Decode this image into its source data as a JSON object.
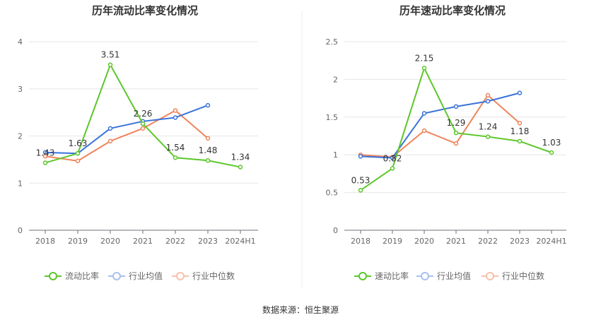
{
  "source_text": "数据来源：恒生聚源",
  "chart_data": [
    {
      "type": "line",
      "title": "历年流动比率变化情况",
      "categories": [
        "2018",
        "2019",
        "2020",
        "2021",
        "2022",
        "2023",
        "2024H1"
      ],
      "ylim": [
        0,
        4
      ],
      "yticks": [
        "0",
        "1",
        "2",
        "3",
        "4"
      ],
      "grid": true,
      "legend_position": "bottom",
      "series": [
        {
          "name": "流动比率",
          "color": "#5cc72a",
          "values": [
            1.43,
            1.63,
            3.51,
            2.26,
            1.54,
            1.48,
            1.34
          ],
          "labels": [
            "1.43",
            "1.63",
            "3.51",
            "2.26",
            "1.54",
            "1.48",
            "1.34"
          ]
        },
        {
          "name": "行业均值",
          "color": "#3a73d9",
          "values": [
            1.65,
            1.63,
            2.16,
            2.31,
            2.39,
            2.65,
            null
          ]
        },
        {
          "name": "行业中位数",
          "color": "#f0845c",
          "values": [
            1.57,
            1.47,
            1.89,
            2.16,
            2.54,
            1.95,
            null
          ]
        }
      ]
    },
    {
      "type": "line",
      "title": "历年速动比率变化情况",
      "categories": [
        "2018",
        "2019",
        "2020",
        "2021",
        "2022",
        "2023",
        "2024H1"
      ],
      "ylim": [
        0,
        2.5
      ],
      "yticks": [
        "0",
        "0.5",
        "1",
        "1.5",
        "2",
        "2.5"
      ],
      "grid": true,
      "legend_position": "bottom",
      "series": [
        {
          "name": "速动比率",
          "color": "#5cc72a",
          "values": [
            0.53,
            0.82,
            2.15,
            1.29,
            1.24,
            1.18,
            1.03
          ],
          "labels": [
            "0.53",
            "0.82",
            "2.15",
            "1.29",
            "1.24",
            "1.18",
            "1.03"
          ]
        },
        {
          "name": "行业均值",
          "color": "#3a73d9",
          "values": [
            0.98,
            0.96,
            1.55,
            1.64,
            1.71,
            1.82,
            null
          ]
        },
        {
          "name": "行业中位数",
          "color": "#f0845c",
          "values": [
            1.0,
            0.97,
            1.32,
            1.15,
            1.79,
            1.42,
            null
          ]
        }
      ]
    }
  ]
}
